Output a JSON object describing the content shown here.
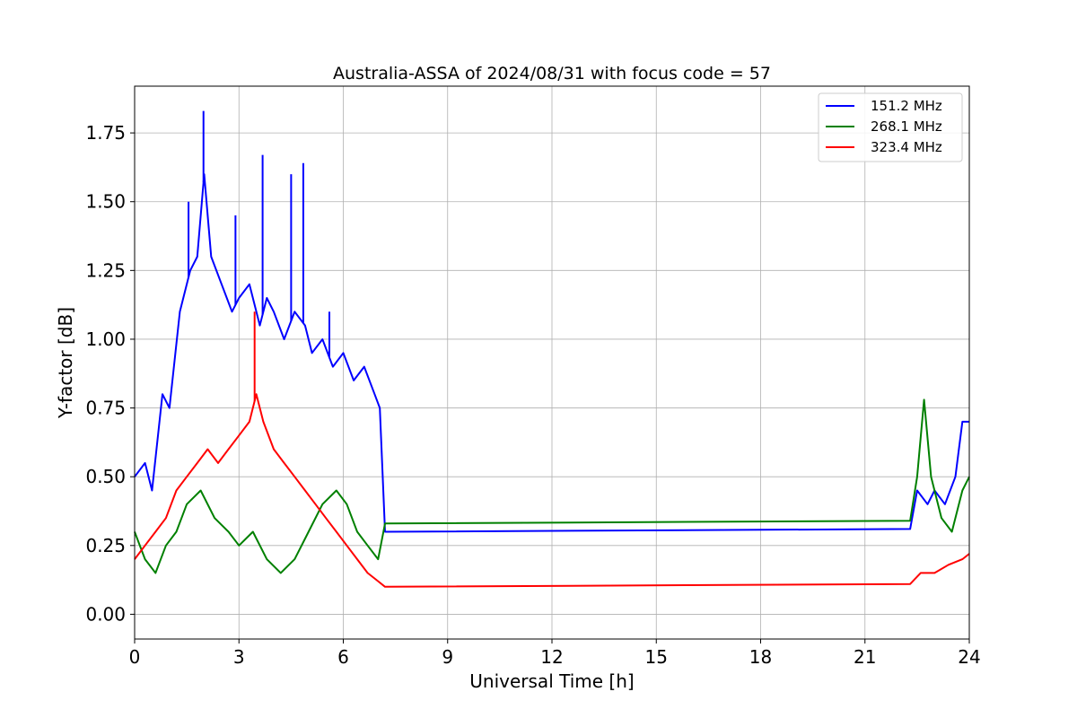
{
  "chart_data": {
    "type": "line",
    "title": "Australia-ASSA of 2024/08/31 with focus code = 57",
    "xlabel": "Universal Time [h]",
    "ylabel": "Y-factor [dB]",
    "xlim": [
      0,
      24
    ],
    "ylim": [
      -0.09,
      1.92
    ],
    "xticks": [
      0,
      3,
      6,
      9,
      12,
      15,
      18,
      21,
      24
    ],
    "xtick_labels": [
      "0",
      "3",
      "6",
      "9",
      "12",
      "15",
      "18",
      "21",
      "24"
    ],
    "yticks": [
      0.0,
      0.25,
      0.5,
      0.75,
      1.0,
      1.25,
      1.5,
      1.75
    ],
    "ytick_labels": [
      "0.00",
      "0.25",
      "0.50",
      "0.75",
      "1.00",
      "1.25",
      "1.50",
      "1.75"
    ],
    "grid": true,
    "legend_position": "top-right",
    "series": [
      {
        "name": "151.2 MHz",
        "color": "#0000ff",
        "x": [
          0.0,
          0.3,
          0.5,
          0.8,
          1.0,
          1.3,
          1.6,
          1.8,
          2.0,
          2.2,
          2.5,
          2.8,
          3.0,
          3.3,
          3.6,
          3.8,
          4.0,
          4.3,
          4.6,
          4.9,
          5.1,
          5.4,
          5.7,
          6.0,
          6.3,
          6.6,
          6.9,
          7.05,
          7.2,
          22.3,
          22.5,
          22.8,
          23.0,
          23.3,
          23.6,
          23.8,
          24.0
        ],
        "y": [
          0.5,
          0.55,
          0.45,
          0.8,
          0.75,
          1.1,
          1.25,
          1.3,
          1.6,
          1.3,
          1.2,
          1.1,
          1.15,
          1.2,
          1.05,
          1.15,
          1.1,
          1.0,
          1.1,
          1.05,
          0.95,
          1.0,
          0.9,
          0.95,
          0.85,
          0.9,
          0.8,
          0.75,
          0.3,
          0.31,
          0.45,
          0.4,
          0.45,
          0.4,
          0.5,
          0.7,
          0.7
        ],
        "spikes": [
          [
            1.55,
            1.5
          ],
          [
            1.98,
            1.83
          ],
          [
            2.9,
            1.45
          ],
          [
            3.68,
            1.67
          ],
          [
            4.5,
            1.6
          ],
          [
            4.85,
            1.64
          ],
          [
            5.6,
            1.1
          ]
        ]
      },
      {
        "name": "268.1 MHz",
        "color": "#008000",
        "x": [
          0.0,
          0.3,
          0.6,
          0.9,
          1.2,
          1.5,
          1.9,
          2.3,
          2.7,
          3.0,
          3.4,
          3.8,
          4.2,
          4.6,
          5.0,
          5.4,
          5.8,
          6.1,
          6.4,
          6.7,
          7.0,
          7.2,
          22.3,
          22.5,
          22.7,
          22.9,
          23.2,
          23.5,
          23.8,
          24.0
        ],
        "y": [
          0.3,
          0.2,
          0.15,
          0.25,
          0.3,
          0.4,
          0.45,
          0.35,
          0.3,
          0.25,
          0.3,
          0.2,
          0.15,
          0.2,
          0.3,
          0.4,
          0.45,
          0.4,
          0.3,
          0.25,
          0.2,
          0.33,
          0.34,
          0.5,
          0.78,
          0.5,
          0.35,
          0.3,
          0.45,
          0.5
        ]
      },
      {
        "name": "323.4 MHz",
        "color": "#ff0000",
        "x": [
          0.0,
          0.3,
          0.6,
          0.9,
          1.2,
          1.5,
          1.8,
          2.1,
          2.4,
          2.7,
          3.0,
          3.3,
          3.5,
          3.7,
          4.0,
          4.3,
          4.6,
          4.9,
          5.2,
          5.5,
          5.8,
          6.1,
          6.4,
          6.7,
          7.0,
          7.2,
          22.3,
          22.6,
          23.0,
          23.4,
          23.8,
          24.0
        ],
        "y": [
          0.2,
          0.25,
          0.3,
          0.35,
          0.45,
          0.5,
          0.55,
          0.6,
          0.55,
          0.6,
          0.65,
          0.7,
          0.8,
          0.7,
          0.6,
          0.55,
          0.5,
          0.45,
          0.4,
          0.35,
          0.3,
          0.25,
          0.2,
          0.15,
          0.12,
          0.1,
          0.11,
          0.15,
          0.15,
          0.18,
          0.2,
          0.22
        ],
        "spikes": [
          [
            3.45,
            1.1
          ]
        ]
      }
    ]
  }
}
